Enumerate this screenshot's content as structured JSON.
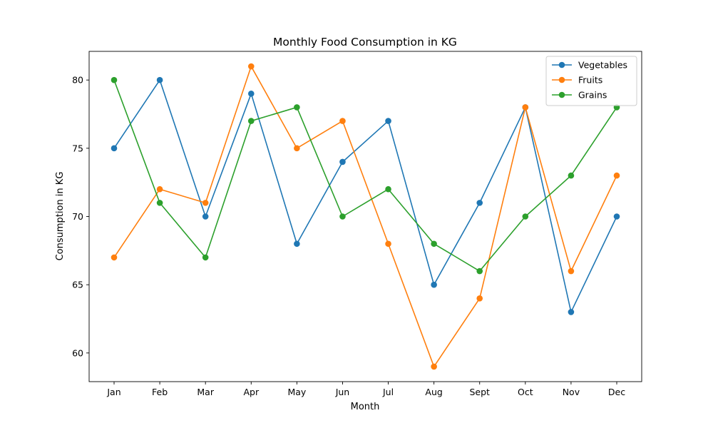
{
  "chart_data": {
    "type": "line",
    "title": "Monthly Food Consumption in KG",
    "xlabel": "Month",
    "ylabel": "Consumption in KG",
    "categories": [
      "Jan",
      "Feb",
      "Mar",
      "Apr",
      "May",
      "Jun",
      "Jul",
      "Aug",
      "Sept",
      "Oct",
      "Nov",
      "Dec"
    ],
    "ylim": [
      57.9,
      82.1
    ],
    "yticks": [
      60,
      65,
      70,
      75,
      80
    ],
    "grid": false,
    "legend_position": "top-right",
    "series": [
      {
        "name": "Vegetables",
        "color": "#1f77b4",
        "values": [
          75,
          80,
          70,
          79,
          68,
          74,
          77,
          65,
          71,
          78,
          63,
          70
        ]
      },
      {
        "name": "Fruits",
        "color": "#ff7f0e",
        "values": [
          67,
          72,
          71,
          81,
          75,
          77,
          68,
          59,
          64,
          78,
          66,
          73
        ]
      },
      {
        "name": "Grains",
        "color": "#2ca02c",
        "values": [
          80,
          71,
          67,
          77,
          78,
          70,
          72,
          68,
          66,
          70,
          73,
          78
        ]
      }
    ]
  }
}
